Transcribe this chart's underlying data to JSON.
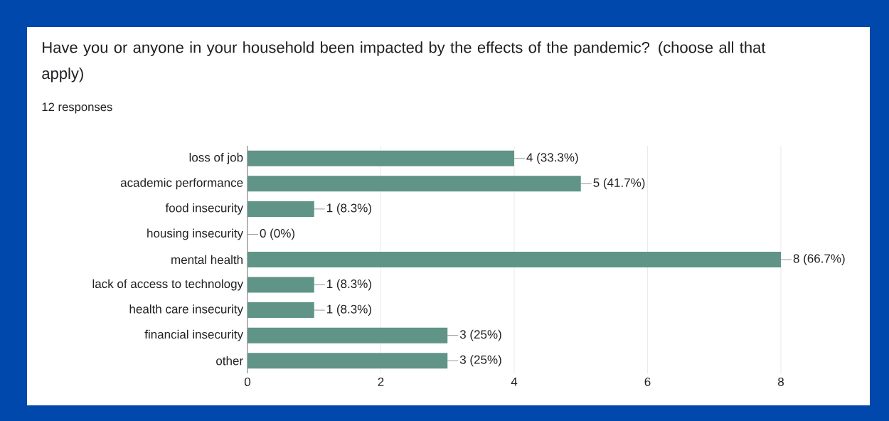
{
  "chart_data": {
    "type": "bar",
    "orientation": "horizontal",
    "title": "Have you or anyone in your household been impacted by the effects of the pandemic? (choose all that apply)",
    "subtitle": "12 responses",
    "categories": [
      "loss of job",
      "academic performance",
      "food insecurity",
      "housing insecurity",
      "mental health",
      "lack of access to technology",
      "health care insecurity",
      "financial insecurity",
      "other"
    ],
    "values": [
      4,
      5,
      1,
      0,
      8,
      1,
      1,
      3,
      3
    ],
    "value_labels": [
      "4 (33.3%)",
      "5 (41.7%)",
      "1 (8.3%)",
      "0 (0%)",
      "8 (66.7%)",
      "1 (8.3%)",
      "1 (8.3%)",
      "3 (25%)",
      "3 (25%)"
    ],
    "color": "#5f9487",
    "xlim": [
      0,
      8
    ],
    "xticks": [
      0,
      2,
      4,
      6,
      8
    ],
    "grid": "x"
  }
}
